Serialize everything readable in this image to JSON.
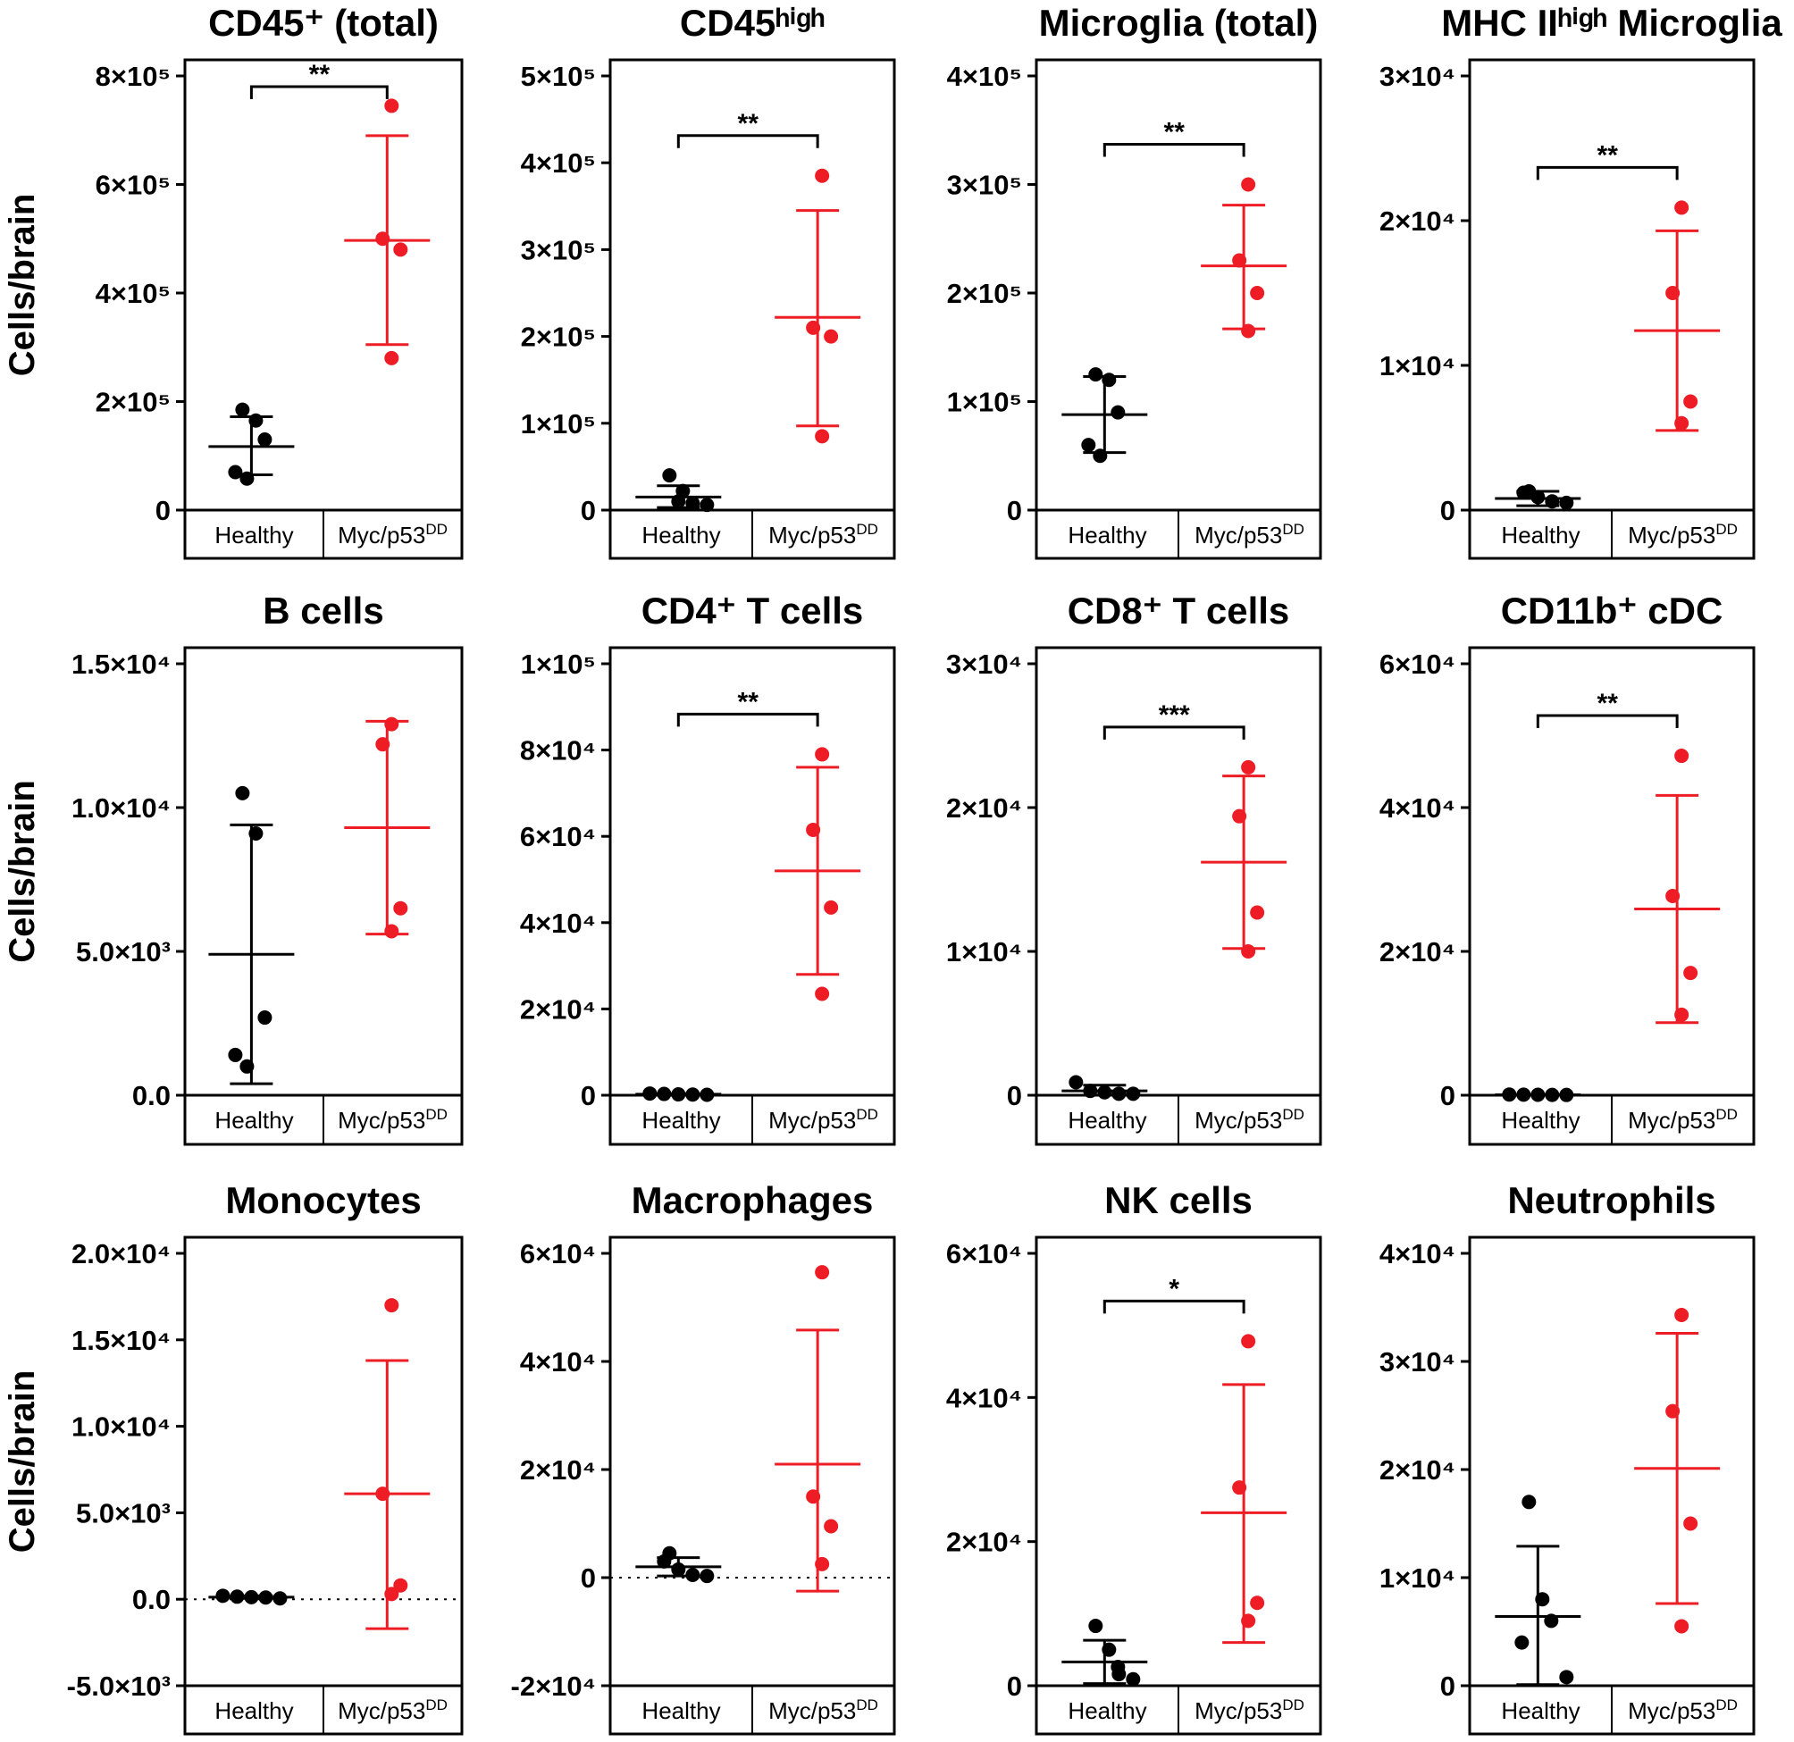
{
  "figure": {
    "ylabel": "Cells/brain",
    "group_labels": [
      "Healthy",
      "Myc/p53DD"
    ],
    "colors": {
      "Healthy": "#000000",
      "Myc/p53DD": "#ee1c25"
    }
  },
  "chart_data": [
    {
      "type": "scatter",
      "title": "CD45⁺ (total)",
      "ylabel": "Cells/brain",
      "ylim": [
        0,
        800000
      ],
      "yticks": [
        {
          "value": 0,
          "label": "0"
        },
        {
          "value": 200000,
          "label": "2×10⁵"
        },
        {
          "value": 400000,
          "label": "4×10⁵"
        },
        {
          "value": 600000,
          "label": "6×10⁵"
        },
        {
          "value": 800000,
          "label": "8×10⁵"
        }
      ],
      "categories": [
        "Healthy",
        "Myc/p53DD"
      ],
      "series": [
        {
          "name": "Healthy",
          "points": [
            185000,
            165000,
            130000,
            70000,
            58000
          ],
          "mean": 117000,
          "sd_low": 65000,
          "sd_high": 172000
        },
        {
          "name": "Myc/p53DD",
          "points": [
            745000,
            500000,
            480000,
            280000
          ],
          "mean": 497000,
          "sd_low": 305000,
          "sd_high": 690000
        }
      ],
      "significance": "**",
      "zero_line": false
    },
    {
      "type": "scatter",
      "title": "CD45ʰⁱᵍʰ",
      "ylabel": "",
      "ylim": [
        0,
        500000
      ],
      "yticks": [
        {
          "value": 0,
          "label": "0"
        },
        {
          "value": 100000,
          "label": "1×10⁵"
        },
        {
          "value": 200000,
          "label": "2×10⁵"
        },
        {
          "value": 300000,
          "label": "3×10⁵"
        },
        {
          "value": 400000,
          "label": "4×10⁵"
        },
        {
          "value": 500000,
          "label": "5×10⁵"
        }
      ],
      "categories": [
        "Healthy",
        "Myc/p53DD"
      ],
      "series": [
        {
          "name": "Healthy",
          "points": [
            40000,
            22000,
            10000,
            8000,
            6000
          ],
          "mean": 15000,
          "sd_low": 3000,
          "sd_high": 28000
        },
        {
          "name": "Myc/p53DD",
          "points": [
            385000,
            210000,
            200000,
            85000
          ],
          "mean": 222000,
          "sd_low": 97000,
          "sd_high": 345000
        }
      ],
      "significance": "**",
      "zero_line": false
    },
    {
      "type": "scatter",
      "title": "Microglia (total)",
      "ylabel": "",
      "ylim": [
        0,
        400000
      ],
      "yticks": [
        {
          "value": 0,
          "label": "0"
        },
        {
          "value": 100000,
          "label": "1×10⁵"
        },
        {
          "value": 200000,
          "label": "2×10⁵"
        },
        {
          "value": 300000,
          "label": "3×10⁵"
        },
        {
          "value": 400000,
          "label": "4×10⁵"
        }
      ],
      "categories": [
        "Healthy",
        "Myc/p53DD"
      ],
      "series": [
        {
          "name": "Healthy",
          "points": [
            125000,
            120000,
            90000,
            60000,
            50000
          ],
          "mean": 88000,
          "sd_low": 53000,
          "sd_high": 123000
        },
        {
          "name": "Myc/p53DD",
          "points": [
            300000,
            230000,
            200000,
            165000
          ],
          "mean": 225000,
          "sd_low": 167000,
          "sd_high": 281000
        }
      ],
      "significance": "**",
      "zero_line": false
    },
    {
      "type": "scatter",
      "title": "MHC IIʰⁱᵍʰ Microglia",
      "ylabel": "",
      "ylim": [
        0,
        30000
      ],
      "yticks": [
        {
          "value": 0,
          "label": "0"
        },
        {
          "value": 10000,
          "label": "1×10⁴"
        },
        {
          "value": 20000,
          "label": "2×10⁴"
        },
        {
          "value": 30000,
          "label": "3×10⁴"
        }
      ],
      "categories": [
        "Healthy",
        "Myc/p53DD"
      ],
      "series": [
        {
          "name": "Healthy",
          "points": [
            1300,
            1200,
            900,
            600,
            500
          ],
          "mean": 800,
          "sd_low": 300,
          "sd_high": 1300
        },
        {
          "name": "Myc/p53DD",
          "points": [
            20900,
            15000,
            7500,
            6000
          ],
          "mean": 12400,
          "sd_low": 5500,
          "sd_high": 19300
        }
      ],
      "significance": "**",
      "zero_line": false
    },
    {
      "type": "scatter",
      "title": "B cells",
      "ylabel": "Cells/brain",
      "ylim": [
        0,
        15000
      ],
      "yticks": [
        {
          "value": 0,
          "label": "0.0"
        },
        {
          "value": 5000,
          "label": "5.0×10³"
        },
        {
          "value": 10000,
          "label": "1.0×10⁴"
        },
        {
          "value": 15000,
          "label": "1.5×10⁴"
        }
      ],
      "categories": [
        "Healthy",
        "Myc/p53DD"
      ],
      "series": [
        {
          "name": "Healthy",
          "points": [
            10500,
            9100,
            2700,
            1400,
            1000
          ],
          "mean": 4900,
          "sd_low": 400,
          "sd_high": 9400
        },
        {
          "name": "Myc/p53DD",
          "points": [
            12900,
            12200,
            6500,
            5700
          ],
          "mean": 9300,
          "sd_low": 5600,
          "sd_high": 13000
        }
      ],
      "significance": null,
      "zero_line": false
    },
    {
      "type": "scatter",
      "title": "CD4⁺ T cells",
      "ylabel": "",
      "ylim": [
        0,
        100000
      ],
      "yticks": [
        {
          "value": 0,
          "label": "0"
        },
        {
          "value": 20000,
          "label": "2×10⁴"
        },
        {
          "value": 40000,
          "label": "4×10⁴"
        },
        {
          "value": 60000,
          "label": "6×10⁴"
        },
        {
          "value": 80000,
          "label": "8×10⁴"
        },
        {
          "value": 100000,
          "label": "1×10⁵"
        }
      ],
      "categories": [
        "Healthy",
        "Myc/p53DD"
      ],
      "series": [
        {
          "name": "Healthy",
          "points": [
            400,
            300,
            200,
            150,
            100
          ],
          "mean": 230,
          "sd_low": 100,
          "sd_high": 360
        },
        {
          "name": "Myc/p53DD",
          "points": [
            79000,
            61500,
            43500,
            23500
          ],
          "mean": 52000,
          "sd_low": 28000,
          "sd_high": 76000
        }
      ],
      "significance": "**",
      "zero_line": false
    },
    {
      "type": "scatter",
      "title": "CD8⁺ T cells",
      "ylabel": "",
      "ylim": [
        0,
        30000
      ],
      "yticks": [
        {
          "value": 0,
          "label": "0"
        },
        {
          "value": 10000,
          "label": "1×10⁴"
        },
        {
          "value": 20000,
          "label": "2×10⁴"
        },
        {
          "value": 30000,
          "label": "3×10⁴"
        }
      ],
      "categories": [
        "Healthy",
        "Myc/p53DD"
      ],
      "series": [
        {
          "name": "Healthy",
          "points": [
            900,
            300,
            200,
            100,
            100
          ],
          "mean": 300,
          "sd_low": 0,
          "sd_high": 700
        },
        {
          "name": "Myc/p53DD",
          "points": [
            22800,
            19400,
            12700,
            10000
          ],
          "mean": 16200,
          "sd_low": 10200,
          "sd_high": 22200
        }
      ],
      "significance": "***",
      "zero_line": false
    },
    {
      "type": "scatter",
      "title": "CD11b⁺ cDC",
      "ylabel": "",
      "ylim": [
        0,
        60000
      ],
      "yticks": [
        {
          "value": 0,
          "label": "0"
        },
        {
          "value": 20000,
          "label": "2×10⁴"
        },
        {
          "value": 40000,
          "label": "4×10⁴"
        },
        {
          "value": 60000,
          "label": "6×10⁴"
        }
      ],
      "categories": [
        "Healthy",
        "Myc/p53DD"
      ],
      "series": [
        {
          "name": "Healthy",
          "points": [
            100,
            80,
            60,
            50,
            40
          ],
          "mean": 65,
          "sd_low": 40,
          "sd_high": 90
        },
        {
          "name": "Myc/p53DD",
          "points": [
            47200,
            27700,
            17000,
            11200
          ],
          "mean": 25900,
          "sd_low": 10100,
          "sd_high": 41700
        }
      ],
      "significance": "**",
      "zero_line": false
    },
    {
      "type": "scatter",
      "title": "Monocytes",
      "ylabel": "Cells/brain",
      "ylim": [
        -5000,
        20000
      ],
      "yticks": [
        {
          "value": -5000,
          "label": "-5.0×10³"
        },
        {
          "value": 0,
          "label": "0.0"
        },
        {
          "value": 5000,
          "label": "5.0×10³"
        },
        {
          "value": 10000,
          "label": "1.0×10⁴"
        },
        {
          "value": 15000,
          "label": "1.5×10⁴"
        },
        {
          "value": 20000,
          "label": "2.0×10⁴"
        }
      ],
      "categories": [
        "Healthy",
        "Myc/p53DD"
      ],
      "series": [
        {
          "name": "Healthy",
          "points": [
            200,
            150,
            120,
            100,
            50
          ],
          "mean": 120,
          "sd_low": 50,
          "sd_high": 200
        },
        {
          "name": "Myc/p53DD",
          "points": [
            17000,
            6100,
            800,
            300
          ],
          "mean": 6100,
          "sd_low": -1700,
          "sd_high": 13800
        }
      ],
      "significance": null,
      "zero_line": true
    },
    {
      "type": "scatter",
      "title": "Macrophages",
      "ylabel": "",
      "ylim": [
        -20000,
        60000
      ],
      "yticks": [
        {
          "value": -20000,
          "label": "-2×10⁴"
        },
        {
          "value": 0,
          "label": "0"
        },
        {
          "value": 20000,
          "label": "2×10⁴"
        },
        {
          "value": 40000,
          "label": "4×10⁴"
        },
        {
          "value": 60000,
          "label": "6×10⁴"
        }
      ],
      "categories": [
        "Healthy",
        "Myc/p53DD"
      ],
      "series": [
        {
          "name": "Healthy",
          "points": [
            4500,
            3000,
            1500,
            500,
            300
          ],
          "mean": 2000,
          "sd_low": 300,
          "sd_high": 3700
        },
        {
          "name": "Myc/p53DD",
          "points": [
            56500,
            15000,
            9500,
            2500
          ],
          "mean": 21000,
          "sd_low": -2500,
          "sd_high": 45800
        }
      ],
      "significance": null,
      "zero_line": true
    },
    {
      "type": "scatter",
      "title": "NK cells",
      "ylabel": "",
      "ylim": [
        0,
        60000
      ],
      "yticks": [
        {
          "value": 0,
          "label": "0"
        },
        {
          "value": 20000,
          "label": "2×10⁴"
        },
        {
          "value": 40000,
          "label": "4×10⁴"
        },
        {
          "value": 60000,
          "label": "6×10⁴"
        }
      ],
      "categories": [
        "Healthy",
        "Myc/p53DD"
      ],
      "series": [
        {
          "name": "Healthy",
          "points": [
            8300,
            5000,
            2600,
            1600,
            900
          ],
          "mean": 3300,
          "sd_low": 300,
          "sd_high": 6300
        },
        {
          "name": "Myc/p53DD",
          "points": [
            47800,
            27500,
            11500,
            9000
          ],
          "mean": 24000,
          "sd_low": 6000,
          "sd_high": 41800
        }
      ],
      "significance": "*",
      "zero_line": false
    },
    {
      "type": "scatter",
      "title": "Neutrophils",
      "ylabel": "",
      "ylim": [
        0,
        40000
      ],
      "yticks": [
        {
          "value": 0,
          "label": "0"
        },
        {
          "value": 10000,
          "label": "1×10⁴"
        },
        {
          "value": 20000,
          "label": "2×10⁴"
        },
        {
          "value": 30000,
          "label": "3×10⁴"
        },
        {
          "value": 40000,
          "label": "4×10⁴"
        }
      ],
      "categories": [
        "Healthy",
        "Myc/p53DD"
      ],
      "series": [
        {
          "name": "Healthy",
          "points": [
            17000,
            8000,
            6000,
            4000,
            800
          ],
          "mean": 6400,
          "sd_low": 100,
          "sd_high": 12900
        },
        {
          "name": "Myc/p53DD",
          "points": [
            34300,
            25400,
            15000,
            5500
          ],
          "mean": 20100,
          "sd_low": 7600,
          "sd_high": 32600
        }
      ],
      "significance": null,
      "zero_line": false
    }
  ]
}
